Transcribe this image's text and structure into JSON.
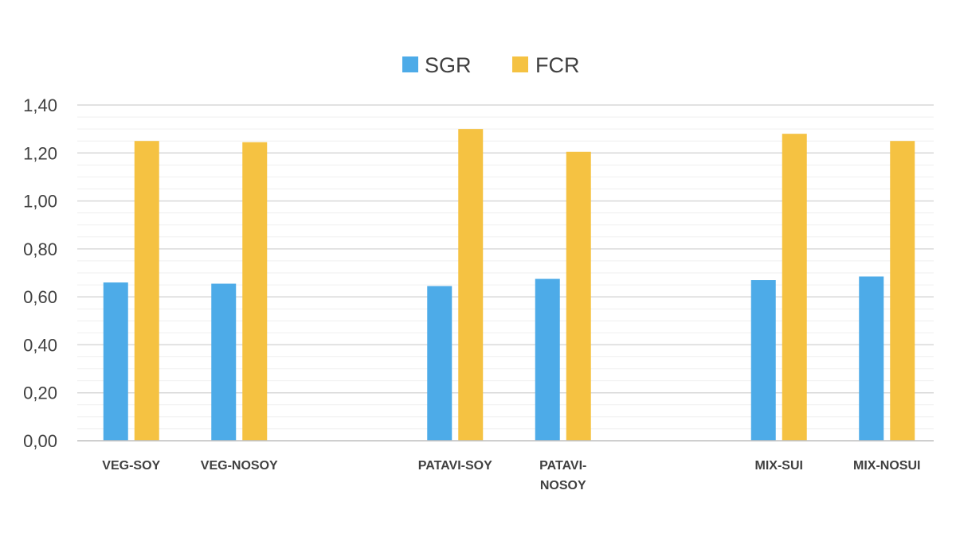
{
  "chart_data": {
    "type": "bar",
    "categories": [
      [
        "VEG-SOY"
      ],
      [
        "VEG-NOSOY"
      ],
      [],
      [
        "PATAVI-SOY"
      ],
      [
        "PATAVI-",
        "NOSOY"
      ],
      [],
      [
        "MIX-SUI"
      ],
      [
        "MIX-NOSUI"
      ]
    ],
    "series": [
      {
        "name": "SGR",
        "color": "#4DABE8",
        "values": [
          0.66,
          0.655,
          null,
          0.645,
          0.675,
          null,
          0.67,
          0.685
        ]
      },
      {
        "name": "FCR",
        "color": "#F5C242",
        "values": [
          1.25,
          1.245,
          null,
          1.3,
          1.205,
          null,
          1.28,
          1.25
        ]
      }
    ],
    "ylim": [
      0,
      1.4
    ],
    "yticks": [
      "0,00",
      "0,20",
      "0,40",
      "0,60",
      "0,80",
      "1,00",
      "1,20",
      "1,40"
    ],
    "ytick_values": [
      0,
      0.2,
      0.4,
      0.6,
      0.8,
      1.0,
      1.2,
      1.4
    ],
    "minor_grid_step": 0.05,
    "legend_position": "top-center",
    "grid": true
  }
}
